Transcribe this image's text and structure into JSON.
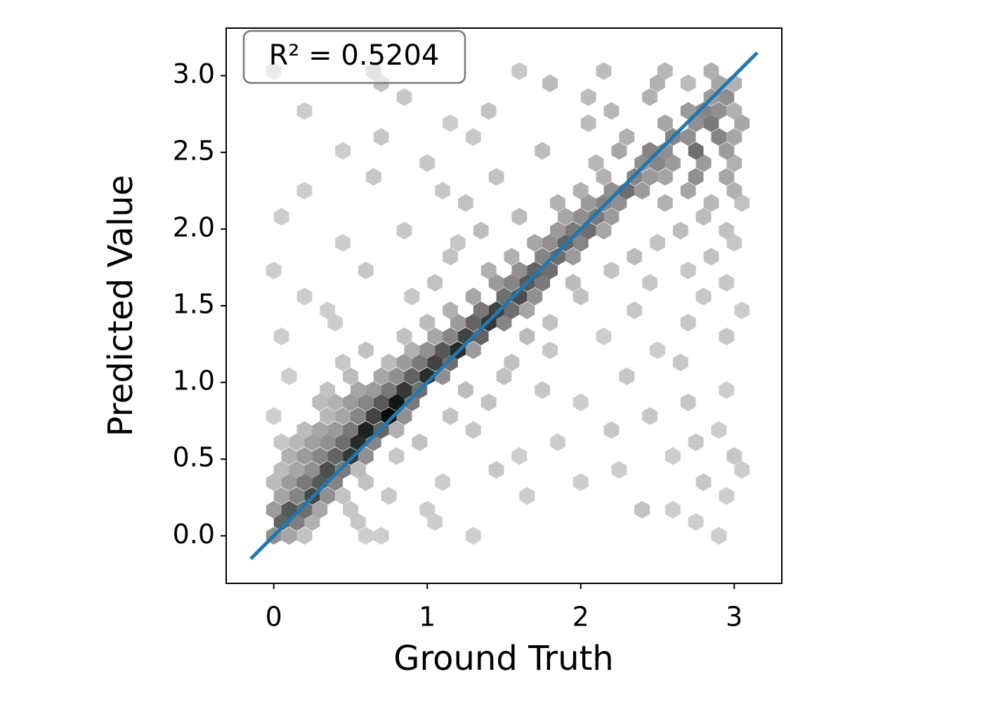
{
  "chart_data": {
    "type": "hexbin",
    "xlabel": "Ground Truth",
    "ylabel": "Predicted Value",
    "annotation": "R² = 0.5204",
    "xlim": [
      -0.31,
      3.31
    ],
    "ylim": [
      -0.31,
      3.31
    ],
    "xticks": [
      0,
      1,
      2,
      3
    ],
    "yticks": [
      {
        "value": 0,
        "label": "0.0"
      },
      {
        "value": 0.5,
        "label": "0.5"
      },
      {
        "value": 1,
        "label": "1.0"
      },
      {
        "value": 1.5,
        "label": "1.5"
      },
      {
        "value": 2,
        "label": "2.0"
      },
      {
        "value": 2.5,
        "label": "2.5"
      },
      {
        "value": 3,
        "label": "3.0"
      }
    ],
    "grid": false,
    "cmap": "Greys",
    "hexes": [
      [
        0.0,
        0.0,
        12
      ],
      [
        0.1,
        0.0,
        8
      ],
      [
        0.2,
        0.0,
        3
      ],
      [
        0.6,
        0.0,
        1
      ],
      [
        0.7,
        0.0,
        1
      ],
      [
        1.3,
        0.0,
        1
      ],
      [
        2.9,
        0.0,
        1
      ],
      [
        0.05,
        0.09,
        20
      ],
      [
        0.15,
        0.09,
        15
      ],
      [
        0.25,
        0.09,
        6
      ],
      [
        0.55,
        0.09,
        2
      ],
      [
        1.05,
        0.09,
        1
      ],
      [
        2.75,
        0.09,
        1
      ],
      [
        0.0,
        0.17,
        10
      ],
      [
        0.1,
        0.17,
        22
      ],
      [
        0.2,
        0.17,
        18
      ],
      [
        0.3,
        0.17,
        8
      ],
      [
        0.5,
        0.17,
        2
      ],
      [
        1.0,
        0.17,
        1
      ],
      [
        2.4,
        0.17,
        3
      ],
      [
        2.6,
        0.17,
        1
      ],
      [
        0.05,
        0.26,
        8
      ],
      [
        0.15,
        0.26,
        14
      ],
      [
        0.25,
        0.26,
        25
      ],
      [
        0.35,
        0.26,
        12
      ],
      [
        0.45,
        0.26,
        3
      ],
      [
        0.75,
        0.26,
        2
      ],
      [
        1.65,
        0.26,
        1
      ],
      [
        2.95,
        0.26,
        1
      ],
      [
        0.0,
        0.35,
        4
      ],
      [
        0.1,
        0.35,
        10
      ],
      [
        0.2,
        0.35,
        16
      ],
      [
        0.3,
        0.35,
        22
      ],
      [
        0.4,
        0.35,
        14
      ],
      [
        0.6,
        0.35,
        3
      ],
      [
        1.1,
        0.35,
        1
      ],
      [
        2.0,
        0.35,
        1
      ],
      [
        2.8,
        0.35,
        2
      ],
      [
        0.05,
        0.43,
        4
      ],
      [
        0.15,
        0.43,
        8
      ],
      [
        0.25,
        0.43,
        12
      ],
      [
        0.35,
        0.43,
        24
      ],
      [
        0.45,
        0.43,
        16
      ],
      [
        0.55,
        0.43,
        4
      ],
      [
        1.45,
        0.43,
        2
      ],
      [
        2.25,
        0.43,
        1
      ],
      [
        3.05,
        0.43,
        1
      ],
      [
        0.1,
        0.52,
        6
      ],
      [
        0.2,
        0.52,
        10
      ],
      [
        0.3,
        0.52,
        14
      ],
      [
        0.4,
        0.52,
        20
      ],
      [
        0.5,
        0.52,
        28
      ],
      [
        0.6,
        0.52,
        12
      ],
      [
        0.8,
        0.52,
        2
      ],
      [
        1.6,
        0.52,
        1
      ],
      [
        2.6,
        0.52,
        1
      ],
      [
        3.0,
        0.52,
        2
      ],
      [
        0.05,
        0.61,
        2
      ],
      [
        0.15,
        0.61,
        5
      ],
      [
        0.25,
        0.61,
        9
      ],
      [
        0.35,
        0.61,
        12
      ],
      [
        0.45,
        0.61,
        18
      ],
      [
        0.55,
        0.61,
        30
      ],
      [
        0.65,
        0.61,
        14
      ],
      [
        0.95,
        0.61,
        3
      ],
      [
        1.85,
        0.61,
        1
      ],
      [
        2.75,
        0.61,
        2
      ],
      [
        0.2,
        0.69,
        4
      ],
      [
        0.3,
        0.69,
        8
      ],
      [
        0.4,
        0.69,
        10
      ],
      [
        0.5,
        0.69,
        16
      ],
      [
        0.6,
        0.69,
        32
      ],
      [
        0.7,
        0.69,
        20
      ],
      [
        0.8,
        0.69,
        6
      ],
      [
        1.3,
        0.69,
        2
      ],
      [
        2.2,
        0.69,
        2
      ],
      [
        2.9,
        0.69,
        1
      ],
      [
        0.0,
        0.78,
        1
      ],
      [
        0.35,
        0.78,
        5
      ],
      [
        0.45,
        0.78,
        8
      ],
      [
        0.55,
        0.78,
        14
      ],
      [
        0.65,
        0.78,
        26
      ],
      [
        0.75,
        0.78,
        36
      ],
      [
        0.85,
        0.78,
        12
      ],
      [
        1.15,
        0.78,
        3
      ],
      [
        2.45,
        0.78,
        2
      ],
      [
        0.3,
        0.87,
        4
      ],
      [
        0.4,
        0.87,
        6
      ],
      [
        0.5,
        0.87,
        10
      ],
      [
        0.6,
        0.87,
        14
      ],
      [
        0.7,
        0.87,
        22
      ],
      [
        0.8,
        0.87,
        34
      ],
      [
        0.9,
        0.87,
        16
      ],
      [
        1.4,
        0.87,
        3
      ],
      [
        2.0,
        0.87,
        1
      ],
      [
        2.7,
        0.87,
        2
      ],
      [
        0.35,
        0.95,
        3
      ],
      [
        0.55,
        0.95,
        8
      ],
      [
        0.65,
        0.95,
        10
      ],
      [
        0.75,
        0.95,
        16
      ],
      [
        0.85,
        0.95,
        28
      ],
      [
        0.95,
        0.95,
        18
      ],
      [
        1.25,
        0.95,
        4
      ],
      [
        1.75,
        0.95,
        2
      ],
      [
        2.95,
        0.95,
        1
      ],
      [
        0.1,
        1.04,
        1
      ],
      [
        0.5,
        1.04,
        4
      ],
      [
        0.7,
        1.04,
        8
      ],
      [
        0.8,
        1.04,
        12
      ],
      [
        0.9,
        1.04,
        20
      ],
      [
        1.0,
        1.04,
        30
      ],
      [
        1.1,
        1.04,
        12
      ],
      [
        1.5,
        1.04,
        3
      ],
      [
        2.3,
        1.04,
        2
      ],
      [
        0.45,
        1.13,
        2
      ],
      [
        0.75,
        1.13,
        4
      ],
      [
        0.85,
        1.13,
        10
      ],
      [
        0.95,
        1.13,
        16
      ],
      [
        1.05,
        1.13,
        26
      ],
      [
        1.15,
        1.13,
        18
      ],
      [
        1.55,
        1.13,
        3
      ],
      [
        2.65,
        1.13,
        2
      ],
      [
        0.6,
        1.21,
        3
      ],
      [
        0.9,
        1.21,
        6
      ],
      [
        1.0,
        1.21,
        12
      ],
      [
        1.1,
        1.21,
        22
      ],
      [
        1.2,
        1.21,
        30
      ],
      [
        1.3,
        1.21,
        10
      ],
      [
        1.8,
        1.21,
        2
      ],
      [
        2.5,
        1.21,
        1
      ],
      [
        0.05,
        1.3,
        1
      ],
      [
        0.85,
        1.3,
        3
      ],
      [
        1.05,
        1.3,
        8
      ],
      [
        1.15,
        1.3,
        14
      ],
      [
        1.25,
        1.3,
        26
      ],
      [
        1.35,
        1.3,
        20
      ],
      [
        1.65,
        1.3,
        4
      ],
      [
        2.15,
        1.3,
        1
      ],
      [
        2.95,
        1.3,
        2
      ],
      [
        0.4,
        1.39,
        1
      ],
      [
        1.0,
        1.39,
        4
      ],
      [
        1.2,
        1.39,
        10
      ],
      [
        1.3,
        1.39,
        20
      ],
      [
        1.4,
        1.39,
        28
      ],
      [
        1.5,
        1.39,
        14
      ],
      [
        1.8,
        1.39,
        3
      ],
      [
        2.7,
        1.39,
        2
      ],
      [
        0.35,
        1.47,
        1
      ],
      [
        1.15,
        1.47,
        6
      ],
      [
        1.35,
        1.47,
        16
      ],
      [
        1.45,
        1.47,
        26
      ],
      [
        1.55,
        1.47,
        18
      ],
      [
        1.65,
        1.47,
        8
      ],
      [
        2.35,
        1.47,
        2
      ],
      [
        3.05,
        1.47,
        1
      ],
      [
        0.2,
        1.56,
        1
      ],
      [
        0.9,
        1.56,
        2
      ],
      [
        1.3,
        1.56,
        8
      ],
      [
        1.5,
        1.56,
        18
      ],
      [
        1.6,
        1.56,
        24
      ],
      [
        1.7,
        1.56,
        12
      ],
      [
        2.0,
        1.56,
        3
      ],
      [
        2.8,
        1.56,
        2
      ],
      [
        1.05,
        1.65,
        3
      ],
      [
        1.45,
        1.65,
        10
      ],
      [
        1.55,
        1.65,
        14
      ],
      [
        1.65,
        1.65,
        22
      ],
      [
        1.75,
        1.65,
        16
      ],
      [
        1.95,
        1.65,
        4
      ],
      [
        2.45,
        1.65,
        2
      ],
      [
        2.95,
        1.65,
        2
      ],
      [
        0.0,
        1.73,
        1
      ],
      [
        0.6,
        1.73,
        2
      ],
      [
        1.4,
        1.73,
        6
      ],
      [
        1.6,
        1.73,
        12
      ],
      [
        1.7,
        1.73,
        20
      ],
      [
        1.8,
        1.73,
        18
      ],
      [
        2.2,
        1.73,
        3
      ],
      [
        2.7,
        1.73,
        2
      ],
      [
        1.15,
        1.82,
        3
      ],
      [
        1.55,
        1.82,
        6
      ],
      [
        1.75,
        1.82,
        14
      ],
      [
        1.85,
        1.82,
        18
      ],
      [
        1.95,
        1.82,
        10
      ],
      [
        2.35,
        1.82,
        4
      ],
      [
        2.85,
        1.82,
        3
      ],
      [
        0.45,
        1.91,
        1
      ],
      [
        1.2,
        1.91,
        2
      ],
      [
        1.7,
        1.91,
        8
      ],
      [
        1.8,
        1.91,
        12
      ],
      [
        1.9,
        1.91,
        20
      ],
      [
        2.0,
        1.91,
        14
      ],
      [
        2.5,
        1.91,
        3
      ],
      [
        3.0,
        1.91,
        2
      ],
      [
        0.85,
        1.99,
        2
      ],
      [
        1.35,
        1.99,
        4
      ],
      [
        1.85,
        1.99,
        10
      ],
      [
        1.95,
        1.99,
        16
      ],
      [
        2.05,
        1.99,
        18
      ],
      [
        2.15,
        1.99,
        8
      ],
      [
        2.65,
        1.99,
        4
      ],
      [
        2.95,
        1.99,
        3
      ],
      [
        0.05,
        2.08,
        1
      ],
      [
        1.6,
        2.08,
        4
      ],
      [
        1.9,
        2.08,
        8
      ],
      [
        2.0,
        2.08,
        12
      ],
      [
        2.1,
        2.08,
        16
      ],
      [
        2.2,
        2.08,
        10
      ],
      [
        2.8,
        2.08,
        4
      ],
      [
        1.25,
        2.17,
        3
      ],
      [
        1.85,
        2.17,
        6
      ],
      [
        2.05,
        2.17,
        10
      ],
      [
        2.15,
        2.17,
        14
      ],
      [
        2.25,
        2.17,
        12
      ],
      [
        2.55,
        2.17,
        6
      ],
      [
        2.85,
        2.17,
        5
      ],
      [
        3.05,
        2.17,
        3
      ],
      [
        0.2,
        2.25,
        1
      ],
      [
        1.1,
        2.25,
        2
      ],
      [
        2.0,
        2.25,
        6
      ],
      [
        2.2,
        2.25,
        12
      ],
      [
        2.3,
        2.25,
        18
      ],
      [
        2.4,
        2.25,
        10
      ],
      [
        2.7,
        2.25,
        8
      ],
      [
        3.0,
        2.25,
        6
      ],
      [
        0.65,
        2.34,
        2
      ],
      [
        1.45,
        2.34,
        3
      ],
      [
        2.15,
        2.34,
        6
      ],
      [
        2.35,
        2.34,
        14
      ],
      [
        2.45,
        2.34,
        10
      ],
      [
        2.55,
        2.34,
        8
      ],
      [
        2.75,
        2.34,
        12
      ],
      [
        2.95,
        2.34,
        8
      ],
      [
        1.0,
        2.43,
        2
      ],
      [
        2.1,
        2.43,
        5
      ],
      [
        2.4,
        2.43,
        12
      ],
      [
        2.5,
        2.43,
        14
      ],
      [
        2.6,
        2.43,
        10
      ],
      [
        2.8,
        2.43,
        10
      ],
      [
        3.0,
        2.43,
        6
      ],
      [
        0.45,
        2.51,
        1
      ],
      [
        1.75,
        2.51,
        4
      ],
      [
        2.25,
        2.51,
        8
      ],
      [
        2.45,
        2.51,
        14
      ],
      [
        2.55,
        2.51,
        12
      ],
      [
        2.75,
        2.51,
        18
      ],
      [
        2.95,
        2.51,
        10
      ],
      [
        0.7,
        2.6,
        2
      ],
      [
        1.3,
        2.6,
        2
      ],
      [
        2.3,
        2.6,
        6
      ],
      [
        2.6,
        2.6,
        14
      ],
      [
        2.7,
        2.6,
        12
      ],
      [
        2.9,
        2.6,
        14
      ],
      [
        3.0,
        2.6,
        8
      ],
      [
        1.15,
        2.69,
        1
      ],
      [
        2.05,
        2.69,
        4
      ],
      [
        2.55,
        2.69,
        8
      ],
      [
        2.75,
        2.69,
        12
      ],
      [
        2.85,
        2.69,
        16
      ],
      [
        3.05,
        2.69,
        8
      ],
      [
        0.2,
        2.77,
        1
      ],
      [
        1.4,
        2.77,
        3
      ],
      [
        2.2,
        2.77,
        5
      ],
      [
        2.7,
        2.77,
        10
      ],
      [
        2.8,
        2.77,
        14
      ],
      [
        2.9,
        2.77,
        12
      ],
      [
        3.0,
        2.77,
        6
      ],
      [
        0.85,
        2.86,
        2
      ],
      [
        2.05,
        2.86,
        4
      ],
      [
        2.45,
        2.86,
        6
      ],
      [
        2.85,
        2.86,
        10
      ],
      [
        2.95,
        2.86,
        12
      ],
      [
        0.7,
        2.95,
        3
      ],
      [
        1.8,
        2.95,
        4
      ],
      [
        2.5,
        2.95,
        6
      ],
      [
        2.7,
        2.95,
        4
      ],
      [
        2.9,
        2.95,
        8
      ],
      [
        3.0,
        2.95,
        6
      ],
      [
        0.0,
        3.03,
        1
      ],
      [
        0.65,
        3.03,
        4
      ],
      [
        1.6,
        3.03,
        2
      ],
      [
        2.15,
        3.03,
        4
      ],
      [
        2.55,
        3.03,
        5
      ],
      [
        2.85,
        3.03,
        6
      ]
    ],
    "fit_line": {
      "x": [
        -0.15,
        3.15
      ],
      "y": [
        -0.15,
        3.15
      ],
      "color": "#1f77b4"
    }
  }
}
